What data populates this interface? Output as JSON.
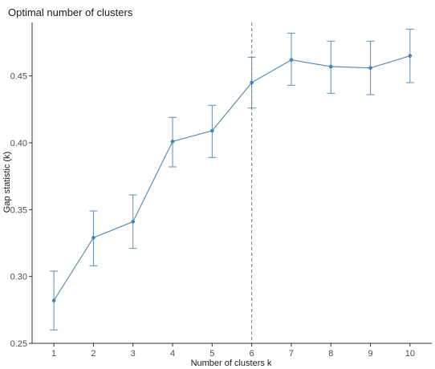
{
  "chart_data": {
    "type": "line",
    "title": "Optimal number of clusters",
    "xlabel": "Number of clusters k",
    "ylabel": "Gap statistic (k)",
    "x": [
      1,
      2,
      3,
      4,
      5,
      6,
      7,
      8,
      9,
      10
    ],
    "x_tick_labels": [
      "1",
      "2",
      "3",
      "4",
      "5",
      "6",
      "7",
      "8",
      "9",
      "10"
    ],
    "ylim": [
      0.25,
      0.49
    ],
    "y_ticks": [
      0.25,
      0.3,
      0.35,
      0.4,
      0.45
    ],
    "y_tick_labels": [
      "0.25",
      "0.30",
      "0.35",
      "0.40",
      "0.45"
    ],
    "series": [
      {
        "values": [
          0.282,
          0.329,
          0.341,
          0.401,
          0.409,
          0.445,
          0.462,
          0.457,
          0.456,
          0.465
        ],
        "error_low": [
          0.26,
          0.308,
          0.321,
          0.382,
          0.389,
          0.426,
          0.443,
          0.437,
          0.436,
          0.445
        ],
        "error_high": [
          0.304,
          0.349,
          0.361,
          0.419,
          0.428,
          0.464,
          0.482,
          0.476,
          0.476,
          0.485
        ]
      }
    ],
    "optimal_k": 6,
    "grid": false,
    "colors": {
      "line": "#5b8db8",
      "point": "#4682b4",
      "vline": "#4682b4",
      "axis": "#333333"
    }
  }
}
